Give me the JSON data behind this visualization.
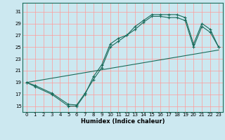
{
  "xlabel": "Humidex (Indice chaleur)",
  "bg_color": "#cce8f0",
  "line_color": "#1a6b5a",
  "grid_color": "#ff9999",
  "xlim": [
    -0.5,
    23.5
  ],
  "ylim": [
    14,
    32.5
  ],
  "yticks": [
    15,
    17,
    19,
    21,
    23,
    25,
    27,
    29,
    31
  ],
  "xticks": [
    0,
    1,
    2,
    3,
    4,
    5,
    6,
    7,
    8,
    9,
    10,
    11,
    12,
    13,
    14,
    15,
    16,
    17,
    18,
    19,
    20,
    21,
    22,
    23
  ],
  "line1_x": [
    0,
    1,
    3,
    5,
    6,
    7,
    8,
    9,
    10,
    11,
    12,
    13,
    14,
    15,
    16,
    17,
    18,
    19,
    20,
    21,
    22,
    23
  ],
  "line1_y": [
    19,
    18.3,
    17.0,
    15.0,
    15.0,
    17.0,
    20.0,
    22.0,
    25.5,
    26.5,
    27.0,
    28.5,
    29.5,
    30.5,
    30.5,
    30.5,
    30.5,
    30.0,
    25.5,
    29.0,
    28.0,
    25.0
  ],
  "line2_x": [
    0,
    1,
    3,
    5,
    6,
    7,
    8,
    9,
    10,
    11,
    12,
    13,
    14,
    15,
    16,
    17,
    18,
    19,
    20,
    21,
    22,
    23
  ],
  "line2_y": [
    19,
    18.5,
    17.2,
    15.3,
    15.2,
    17.2,
    19.5,
    21.5,
    25.0,
    26.0,
    27.0,
    28.0,
    29.2,
    30.2,
    30.2,
    30.0,
    30.0,
    29.5,
    25.0,
    28.5,
    27.5,
    25.0
  ],
  "line3_x": [
    0,
    23
  ],
  "line3_y": [
    19.0,
    24.5
  ],
  "xlabel_fontsize": 6.0,
  "tick_fontsize": 5.0
}
